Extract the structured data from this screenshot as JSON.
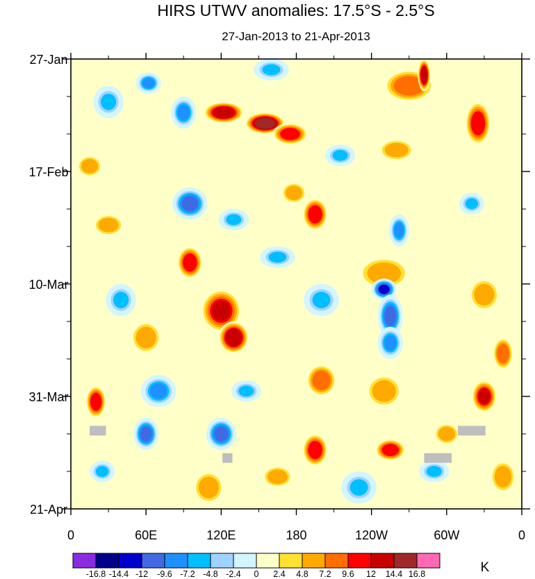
{
  "chart_data": {
    "type": "heatmap",
    "title": "HIRS UTWV anomalies: 17.5°S - 2.5°S",
    "subtitle": "27-Jan-2013 to 21-Apr-2013",
    "x_tick_labels": [
      "0",
      "60E",
      "120E",
      "180",
      "120W",
      "60W",
      "0"
    ],
    "x_ticks_deg": [
      0,
      60,
      120,
      180,
      240,
      300,
      360
    ],
    "xlim": [
      0,
      360
    ],
    "y_tick_labels": [
      "27-Jan",
      "17-Feb",
      "10-Mar",
      "31-Mar",
      "21-Apr"
    ],
    "y_ticks_day": [
      0,
      21,
      42,
      63,
      84
    ],
    "ylim": [
      0,
      84
    ],
    "colorbar": {
      "unit": "K",
      "levels": [
        "-16.8",
        "-14.4",
        "-12",
        "-9.6",
        "-7.2",
        "-4.8",
        "-2.4",
        "0",
        "2.4",
        "4.8",
        "7.2",
        "9.6",
        "12",
        "14.4",
        "16.8"
      ],
      "colors": [
        "#8a2be2",
        "#00008b",
        "#0000cd",
        "#4169e1",
        "#1e90ff",
        "#00bfff",
        "#a0d2ff",
        "#d2f5ff",
        "#ffffc8",
        "#ffe132",
        "#ffaa00",
        "#ff6e00",
        "#ff0000",
        "#c80000",
        "#a02828",
        "#ff69b4"
      ]
    },
    "features": [
      {
        "lon": 62,
        "day": 4.5,
        "value": -8,
        "rx": 10,
        "ry": 2
      },
      {
        "lon": 160,
        "day": 2.0,
        "value": -7,
        "rx": 14,
        "ry": 2
      },
      {
        "lon": 122,
        "day": 10,
        "value": 13,
        "rx": 16,
        "ry": 2
      },
      {
        "lon": 155,
        "day": 12,
        "value": 15,
        "rx": 16,
        "ry": 2
      },
      {
        "lon": 175,
        "day": 14,
        "value": 10,
        "rx": 14,
        "ry": 2
      },
      {
        "lon": 90,
        "day": 10,
        "value": -9,
        "rx": 10,
        "ry": 3
      },
      {
        "lon": 270,
        "day": 5,
        "value": 9,
        "rx": 20,
        "ry": 3
      },
      {
        "lon": 260,
        "day": 17,
        "value": 7,
        "rx": 14,
        "ry": 2
      },
      {
        "lon": 282,
        "day": 3,
        "value": 14,
        "rx": 5,
        "ry": 3
      },
      {
        "lon": 325,
        "day": 12,
        "value": 10,
        "rx": 10,
        "ry": 4
      },
      {
        "lon": 30,
        "day": 8,
        "value": -5,
        "rx": 12,
        "ry": 3
      },
      {
        "lon": 15,
        "day": 20,
        "value": 6,
        "rx": 10,
        "ry": 2
      },
      {
        "lon": 95,
        "day": 27,
        "value": -12,
        "rx": 14,
        "ry": 3
      },
      {
        "lon": 130,
        "day": 30,
        "value": -6,
        "rx": 12,
        "ry": 2
      },
      {
        "lon": 195,
        "day": 29,
        "value": 10,
        "rx": 10,
        "ry": 3
      },
      {
        "lon": 178,
        "day": 25,
        "value": 7,
        "rx": 10,
        "ry": 2
      },
      {
        "lon": 30,
        "day": 31,
        "value": 6,
        "rx": 12,
        "ry": 2
      },
      {
        "lon": 95,
        "day": 38,
        "value": 10,
        "rx": 10,
        "ry": 3
      },
      {
        "lon": 165,
        "day": 37,
        "value": -7,
        "rx": 14,
        "ry": 2
      },
      {
        "lon": 262,
        "day": 32,
        "value": -9,
        "rx": 8,
        "ry": 3
      },
      {
        "lon": 320,
        "day": 27,
        "value": -6,
        "rx": 10,
        "ry": 2
      },
      {
        "lon": 250,
        "day": 40,
        "value": 5,
        "rx": 20,
        "ry": 3
      },
      {
        "lon": 250,
        "day": 43,
        "value": -14,
        "rx": 10,
        "ry": 2
      },
      {
        "lon": 255,
        "day": 48,
        "value": -10,
        "rx": 10,
        "ry": 4
      },
      {
        "lon": 255,
        "day": 53,
        "value": -8,
        "rx": 10,
        "ry": 3
      },
      {
        "lon": 330,
        "day": 44,
        "value": 7,
        "rx": 12,
        "ry": 3
      },
      {
        "lon": 120,
        "day": 47,
        "value": 12,
        "rx": 16,
        "ry": 4
      },
      {
        "lon": 130,
        "day": 52,
        "value": 14,
        "rx": 12,
        "ry": 3
      },
      {
        "lon": 200,
        "day": 45,
        "value": -6,
        "rx": 14,
        "ry": 3
      },
      {
        "lon": 40,
        "day": 45,
        "value": -5,
        "rx": 12,
        "ry": 3
      },
      {
        "lon": 60,
        "day": 52,
        "value": 7,
        "rx": 12,
        "ry": 3
      },
      {
        "lon": 345,
        "day": 55,
        "value": 8,
        "rx": 8,
        "ry": 3
      },
      {
        "lon": 20,
        "day": 64,
        "value": 11,
        "rx": 8,
        "ry": 3
      },
      {
        "lon": 70,
        "day": 62,
        "value": -9,
        "rx": 14,
        "ry": 3
      },
      {
        "lon": 60,
        "day": 70,
        "value": -12,
        "rx": 10,
        "ry": 3
      },
      {
        "lon": 140,
        "day": 62,
        "value": -6,
        "rx": 12,
        "ry": 2
      },
      {
        "lon": 200,
        "day": 60,
        "value": 8,
        "rx": 12,
        "ry": 3
      },
      {
        "lon": 250,
        "day": 62,
        "value": 7,
        "rx": 14,
        "ry": 3
      },
      {
        "lon": 330,
        "day": 63,
        "value": 12,
        "rx": 10,
        "ry": 3
      },
      {
        "lon": 120,
        "day": 70,
        "value": -10,
        "rx": 12,
        "ry": 3
      },
      {
        "lon": 195,
        "day": 73,
        "value": 11,
        "rx": 10,
        "ry": 3
      },
      {
        "lon": 255,
        "day": 73,
        "value": 10,
        "rx": 12,
        "ry": 2
      },
      {
        "lon": 110,
        "day": 80,
        "value": 7,
        "rx": 12,
        "ry": 3
      },
      {
        "lon": 230,
        "day": 80,
        "value": -6,
        "rx": 14,
        "ry": 3
      },
      {
        "lon": 290,
        "day": 77,
        "value": -5,
        "rx": 12,
        "ry": 2
      },
      {
        "lon": 165,
        "day": 78,
        "value": 7,
        "rx": 12,
        "ry": 2
      },
      {
        "lon": 300,
        "day": 70,
        "value": 6,
        "rx": 10,
        "ry": 2
      },
      {
        "lon": 345,
        "day": 78,
        "value": 6,
        "rx": 10,
        "ry": 3
      },
      {
        "lon": 25,
        "day": 77,
        "value": -5,
        "rx": 10,
        "ry": 2
      },
      {
        "lon": 215,
        "day": 18,
        "value": -5,
        "rx": 12,
        "ry": 2
      }
    ],
    "missing_patches": [
      {
        "lon": 15,
        "day": 68.5,
        "dlon": 13,
        "dday": 1.8
      },
      {
        "lon": 121,
        "day": 73.6,
        "dlon": 8,
        "dday": 1.8
      },
      {
        "lon": 282,
        "day": 73.6,
        "dlon": 22,
        "dday": 1.8
      },
      {
        "lon": 309,
        "day": 68.5,
        "dlon": 22,
        "dday": 1.8
      }
    ],
    "missing_color": "#bebebe"
  }
}
